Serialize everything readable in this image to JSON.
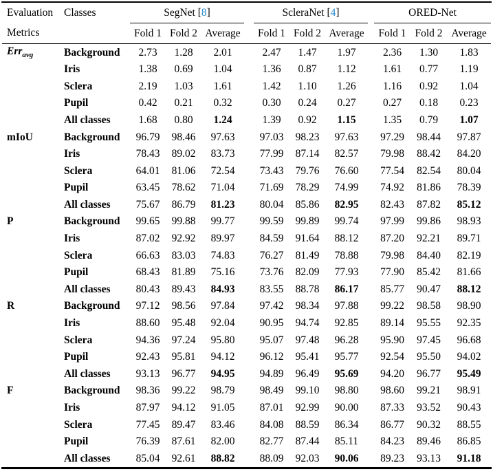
{
  "table": {
    "header": {
      "col_metrics_line1": "Evaluation",
      "col_metrics_line2": "Metrics",
      "col_classes": "Classes",
      "groups": [
        {
          "name": "SegNet ",
          "cite_open": "[",
          "cite": "8",
          "cite_close": "]"
        },
        {
          "name": "ScleraNet ",
          "cite_open": "[",
          "cite": "4",
          "cite_close": "]"
        },
        {
          "name": "ORED-Net",
          "cite_open": "",
          "cite": "",
          "cite_close": ""
        }
      ],
      "fold_labels": [
        "Fold 1",
        "Fold 2",
        "Average"
      ]
    },
    "sections": [
      {
        "metric": "Err",
        "metric_sub": "avg",
        "metric_italic": true,
        "rows": [
          {
            "class": "Background",
            "values": [
              "2.73",
              "1.28",
              "2.01",
              "2.47",
              "1.47",
              "1.97",
              "2.36",
              "1.30",
              "1.83"
            ]
          },
          {
            "class": "Iris",
            "values": [
              "1.38",
              "0.69",
              "1.04",
              "1.36",
              "0.87",
              "1.12",
              "1.61",
              "0.77",
              "1.19"
            ]
          },
          {
            "class": "Sclera",
            "values": [
              "2.19",
              "1.03",
              "1.61",
              "1.42",
              "1.10",
              "1.26",
              "1.16",
              "0.92",
              "1.04"
            ]
          },
          {
            "class": "Pupil",
            "values": [
              "0.42",
              "0.21",
              "0.32",
              "0.30",
              "0.24",
              "0.27",
              "0.27",
              "0.18",
              "0.23"
            ]
          },
          {
            "class": "All classes",
            "bold_avg": true,
            "values": [
              "1.68",
              "0.80",
              "1.24",
              "1.39",
              "0.92",
              "1.15",
              "1.35",
              "0.79",
              "1.07"
            ]
          }
        ]
      },
      {
        "metric": "mIoU",
        "metric_sub": "",
        "metric_italic": false,
        "rows": [
          {
            "class": "Background",
            "values": [
              "96.79",
              "98.46",
              "97.63",
              "97.03",
              "98.23",
              "97.63",
              "97.29",
              "98.44",
              "97.87"
            ]
          },
          {
            "class": "Iris",
            "values": [
              "78.43",
              "89.02",
              "83.73",
              "77.99",
              "87.14",
              "82.57",
              "79.98",
              "88.42",
              "84.20"
            ]
          },
          {
            "class": "Sclera",
            "values": [
              "64.01",
              "81.06",
              "72.54",
              "73.43",
              "79.76",
              "76.60",
              "77.54",
              "82.54",
              "80.04"
            ]
          },
          {
            "class": "Pupil",
            "values": [
              "63.45",
              "78.62",
              "71.04",
              "71.69",
              "78.29",
              "74.99",
              "74.92",
              "81.86",
              "78.39"
            ]
          },
          {
            "class": "All classes",
            "bold_avg": true,
            "values": [
              "75.67",
              "86.79",
              "81.23",
              "80.04",
              "85.86",
              "82.95",
              "82.43",
              "87.82",
              "85.12"
            ]
          }
        ]
      },
      {
        "metric": "P",
        "metric_sub": "",
        "metric_italic": false,
        "rows": [
          {
            "class": "Background",
            "values": [
              "99.65",
              "99.88",
              "99.77",
              "99.59",
              "99.89",
              "99.74",
              "97.99",
              "99.86",
              "98.93"
            ]
          },
          {
            "class": "Iris",
            "values": [
              "87.02",
              "92.92",
              "89.97",
              "84.59",
              "91.64",
              "88.12",
              "87.20",
              "92.21",
              "89.71"
            ]
          },
          {
            "class": "Sclera",
            "values": [
              "66.63",
              "83.03",
              "74.83",
              "76.27",
              "81.49",
              "78.88",
              "79.98",
              "84.40",
              "82.19"
            ]
          },
          {
            "class": "Pupil",
            "values": [
              "68.43",
              "81.89",
              "75.16",
              "73.76",
              "82.09",
              "77.93",
              "77.90",
              "85.42",
              "81.66"
            ]
          },
          {
            "class": "All classes",
            "bold_avg": true,
            "values": [
              "80.43",
              "89.43",
              "84.93",
              "83.55",
              "88.78",
              "86.17",
              "85.77",
              "90.47",
              "88.12"
            ]
          }
        ]
      },
      {
        "metric": "R",
        "metric_sub": "",
        "metric_italic": false,
        "rows": [
          {
            "class": "Background",
            "values": [
              "97.12",
              "98.56",
              "97.84",
              "97.42",
              "98.34",
              "97.88",
              "99.22",
              "98.58",
              "98.90"
            ]
          },
          {
            "class": "Iris",
            "values": [
              "88.60",
              "95.48",
              "92.04",
              "90.95",
              "94.74",
              "92.85",
              "89.14",
              "95.55",
              "92.35"
            ]
          },
          {
            "class": "Sclera",
            "values": [
              "94.36",
              "97.24",
              "95.80",
              "95.07",
              "97.48",
              "96.28",
              "95.90",
              "97.45",
              "96.68"
            ]
          },
          {
            "class": "Pupil",
            "values": [
              "92.43",
              "95.81",
              "94.12",
              "96.12",
              "95.41",
              "95.77",
              "92.54",
              "95.50",
              "94.02"
            ]
          },
          {
            "class": "All classes",
            "bold_avg": true,
            "values": [
              "93.13",
              "96.77",
              "94.95",
              "94.89",
              "96.49",
              "95.69",
              "94.20",
              "96.77",
              "95.49"
            ]
          }
        ]
      },
      {
        "metric": "F",
        "metric_sub": "",
        "metric_italic": false,
        "rows": [
          {
            "class": "Background",
            "values": [
              "98.36",
              "99.22",
              "98.79",
              "98.49",
              "99.10",
              "98.80",
              "98.60",
              "99.21",
              "98.91"
            ]
          },
          {
            "class": "Iris",
            "values": [
              "87.97",
              "94.12",
              "91.05",
              "87.01",
              "92.99",
              "90.00",
              "87.33",
              "93.52",
              "90.43"
            ]
          },
          {
            "class": "Sclera",
            "values": [
              "77.45",
              "89.47",
              "83.46",
              "84.08",
              "88.59",
              "86.34",
              "86.77",
              "90.32",
              "88.55"
            ]
          },
          {
            "class": "Pupil",
            "values": [
              "76.39",
              "87.61",
              "82.00",
              "82.77",
              "87.44",
              "85.11",
              "84.23",
              "89.46",
              "86.85"
            ]
          },
          {
            "class": "All classes",
            "bold_avg": true,
            "values": [
              "85.04",
              "92.61",
              "88.82",
              "88.09",
              "92.03",
              "90.06",
              "89.23",
              "93.13",
              "91.18"
            ]
          }
        ]
      }
    ]
  },
  "colors": {
    "cite_blue": "#1f86c9",
    "text": "#000000",
    "rule": "#000000"
  }
}
